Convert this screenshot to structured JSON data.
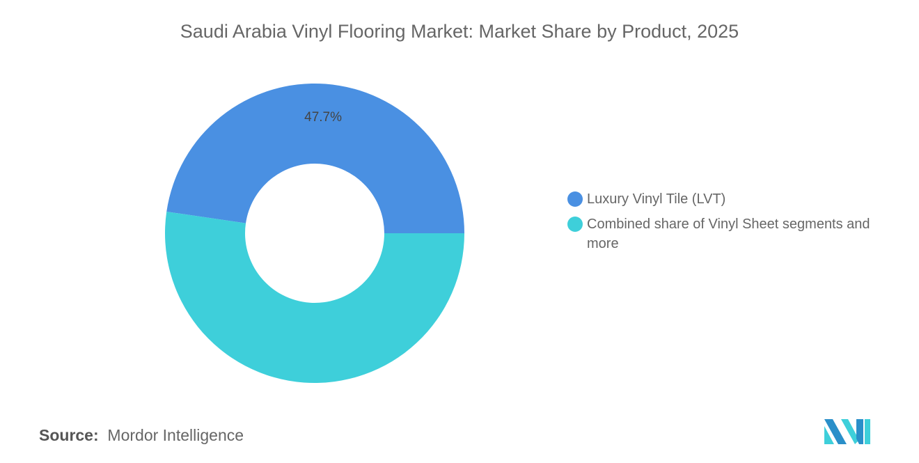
{
  "chart_data": {
    "type": "pie",
    "variant": "donut",
    "title": "Saudi Arabia Vinyl Flooring Market: Market Share by Product, 2025",
    "categories": [
      "Luxury Vinyl Tile (LVT)",
      "Combined share of Vinyl Sheet segments and more"
    ],
    "values": [
      47.7,
      52.3
    ],
    "data_labels": [
      "47.7%",
      ""
    ],
    "colors": [
      "#4a90e2",
      "#3ecfda"
    ],
    "legend_position": "right",
    "unit": "%"
  },
  "source": {
    "label": "Source:",
    "value": "Mordor Intelligence"
  },
  "logo": {
    "name": "mordor-intelligence-logo",
    "colors": [
      "#2a8fc9",
      "#3ecfda"
    ]
  }
}
